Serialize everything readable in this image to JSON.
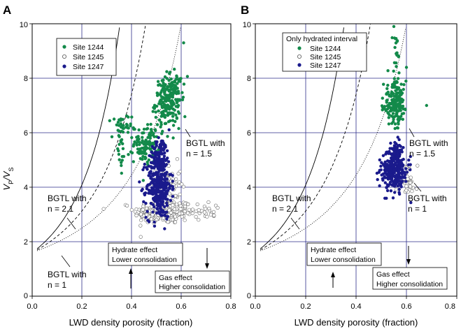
{
  "chart_data": [
    {
      "type": "scatter",
      "panel_label": "A",
      "xlabel": "LWD density porosity (fraction)",
      "ylabel_main": "V",
      "ylabel_sub1": "P",
      "ylabel_sep": "/V",
      "ylabel_sub2": "S",
      "xlim": [
        0,
        0.8
      ],
      "ylim": [
        0,
        10
      ],
      "xticks": [
        "0.0",
        "0.2",
        "0.4",
        "0.6",
        "0.8"
      ],
      "yticks": [
        "0",
        "2",
        "4",
        "6",
        "8",
        "10"
      ],
      "grid": true,
      "legend": {
        "placement": "top-left",
        "title": "",
        "entries": [
          "Site 1244",
          "Site 1245",
          "Site 1247"
        ]
      },
      "series": [
        {
          "name": "Site 1244",
          "color": "#138a4a",
          "marker": "filled-circle",
          "clusters": [
            {
              "x": 0.545,
              "y": 7.1,
              "sx": 0.025,
              "sy": 0.45,
              "n": 190
            },
            {
              "x": 0.58,
              "y": 7.6,
              "sx": 0.015,
              "sy": 0.35,
              "n": 40
            },
            {
              "x": 0.46,
              "y": 5.6,
              "sx": 0.025,
              "sy": 0.35,
              "n": 110
            },
            {
              "x": 0.36,
              "y": 6.1,
              "sx": 0.02,
              "sy": 0.3,
              "n": 35
            },
            {
              "x": 0.355,
              "y": 5.2,
              "sx": 0.01,
              "sy": 0.45,
              "n": 15
            }
          ],
          "extra_points": [
            [
              0.61,
              9.3
            ],
            [
              0.33,
              6.5
            ],
            [
              0.52,
              6.3
            ]
          ]
        },
        {
          "name": "Site 1245",
          "color": "#666666",
          "marker": "open-circle",
          "clusters": [
            {
              "x": 0.53,
              "y": 3.1,
              "sx": 0.06,
              "sy": 0.22,
              "n": 240
            },
            {
              "x": 0.55,
              "y": 4.1,
              "sx": 0.025,
              "sy": 0.4,
              "n": 60
            },
            {
              "x": 0.7,
              "y": 3.15,
              "sx": 0.04,
              "sy": 0.15,
              "n": 25
            }
          ],
          "extra_points": []
        },
        {
          "name": "Site 1247",
          "color": "#1a1a8c",
          "marker": "filled-circle",
          "clusters": [
            {
              "x": 0.51,
              "y": 4.05,
              "sx": 0.025,
              "sy": 0.6,
              "n": 330
            },
            {
              "x": 0.52,
              "y": 5.2,
              "sx": 0.018,
              "sy": 0.3,
              "n": 70
            }
          ],
          "extra_points": []
        }
      ],
      "curves": [
        {
          "label_line1": "BGTL with",
          "label_line2": "n = 1.5",
          "style": "dashed",
          "n": 1.5
        },
        {
          "label_line1": "BGTL with",
          "label_line2": "n = 2.1",
          "style": "solid",
          "n": 2.1
        },
        {
          "label_line1": "BGTL with",
          "label_line2": "n = 1",
          "style": "dotted",
          "n": 1
        }
      ],
      "boxes": [
        {
          "line1": "Hydrate effect",
          "line2": "Lower consolidation",
          "arrow": "up"
        },
        {
          "line1": "Gas effect",
          "line2": "Higher consolidation",
          "arrow": "down"
        }
      ]
    },
    {
      "type": "scatter",
      "panel_label": "B",
      "xlabel": "LWD density porosity (fraction)",
      "xlim": [
        0,
        0.8
      ],
      "ylim": [
        0,
        10
      ],
      "xticks": [
        "0.0",
        "0.2",
        "0.4",
        "0.6",
        "0.8"
      ],
      "yticks": [
        "0",
        "2",
        "4",
        "6",
        "8",
        "10"
      ],
      "grid": true,
      "legend": {
        "placement": "top-left",
        "title": "Only hydrated interval",
        "entries": [
          "Site 1244",
          "Site 1245",
          "Site 1247"
        ]
      },
      "series": [
        {
          "name": "Site 1244",
          "color": "#138a4a",
          "marker": "filled-circle",
          "clusters": [
            {
              "x": 0.555,
              "y": 7.1,
              "sx": 0.022,
              "sy": 0.38,
              "n": 190
            },
            {
              "x": 0.56,
              "y": 9.0,
              "sx": 0.01,
              "sy": 0.6,
              "n": 20
            }
          ],
          "extra_points": [
            [
              0.68,
              7.0
            ],
            [
              0.6,
              8.4
            ],
            [
              0.55,
              9.9
            ]
          ]
        },
        {
          "name": "Site 1245",
          "color": "#666666",
          "marker": "open-circle",
          "clusters": [
            {
              "x": 0.6,
              "y": 4.25,
              "sx": 0.02,
              "sy": 0.28,
              "n": 45
            }
          ],
          "extra_points": []
        },
        {
          "name": "Site 1247",
          "color": "#1a1a8c",
          "marker": "filled-circle",
          "clusters": [
            {
              "x": 0.55,
              "y": 4.6,
              "sx": 0.025,
              "sy": 0.35,
              "n": 260
            },
            {
              "x": 0.56,
              "y": 5.3,
              "sx": 0.012,
              "sy": 0.2,
              "n": 50
            }
          ],
          "extra_points": []
        }
      ],
      "curves": [
        {
          "label_line1": "BGTL with",
          "label_line2": "n = 1.5",
          "style": "dashed",
          "n": 1.5
        },
        {
          "label_line1": "BGTL with",
          "label_line2": "n = 2.1",
          "style": "solid",
          "n": 2.1
        },
        {
          "label_line1": "BGTL with",
          "label_line2": "n = 1",
          "style": "dotted",
          "n": 1
        }
      ],
      "boxes": [
        {
          "line1": "Hydrate effect",
          "line2": "Lower consolidation",
          "arrow": "up"
        },
        {
          "line1": "Gas effect",
          "line2": "Higher consolidation",
          "arrow": "down"
        }
      ]
    }
  ],
  "colors": {
    "grid": "#2e2e8a",
    "site_1244": "#138a4a",
    "site_1245": "#666666",
    "site_1247": "#1a1a8c"
  }
}
